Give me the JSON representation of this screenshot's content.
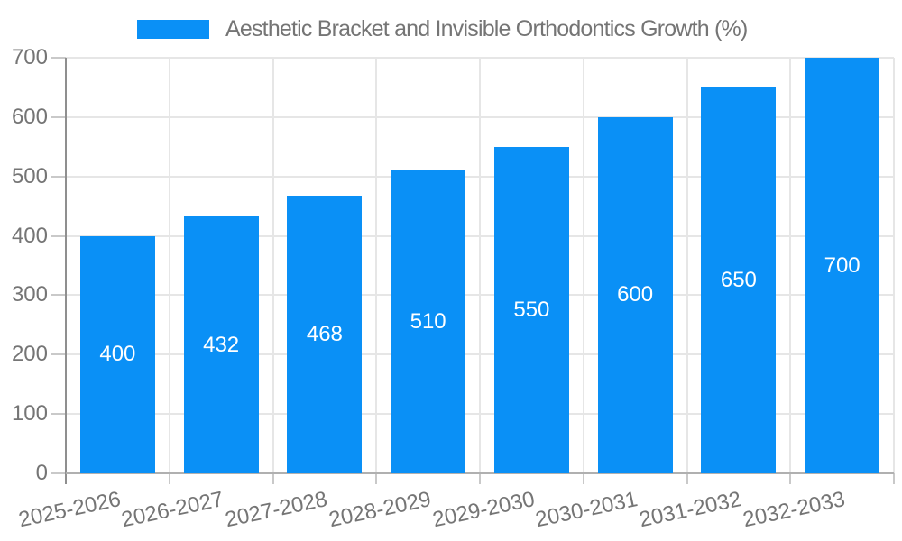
{
  "legend": {
    "label": "Aesthetic Bracket and Invisible Orthodontics Growth (%)"
  },
  "chart_data": {
    "type": "bar",
    "title": "Aesthetic Bracket and Invisible Orthodontics Growth (%)",
    "categories": [
      "2025-2026",
      "2026-2027",
      "2027-2028",
      "2028-2029",
      "2029-2030",
      "2030-2031",
      "2031-2032",
      "2032-2033"
    ],
    "values": [
      400,
      432,
      468,
      510,
      550,
      600,
      650,
      700
    ],
    "bar_value_labels": [
      "400",
      "432",
      "468",
      "510",
      "550",
      "600",
      "650",
      "700"
    ],
    "xlabel": "",
    "ylabel": "",
    "ylim": [
      0,
      700
    ],
    "y_ticks": [
      0,
      100,
      200,
      300,
      400,
      500,
      600,
      700
    ],
    "grid": "on",
    "legend_position": "top",
    "x_tick_rotation_deg": -12,
    "colors": {
      "bar": "#0a90f6",
      "bar_label_text": "#ffffff",
      "axis_label_text": "#757575",
      "legend_text": "#757575",
      "gridline": "#e6e6e6",
      "tick": "#c9c9c9",
      "y_axis_line": "#8f8f8f",
      "x_axis_line": "#b0b0b0"
    }
  }
}
